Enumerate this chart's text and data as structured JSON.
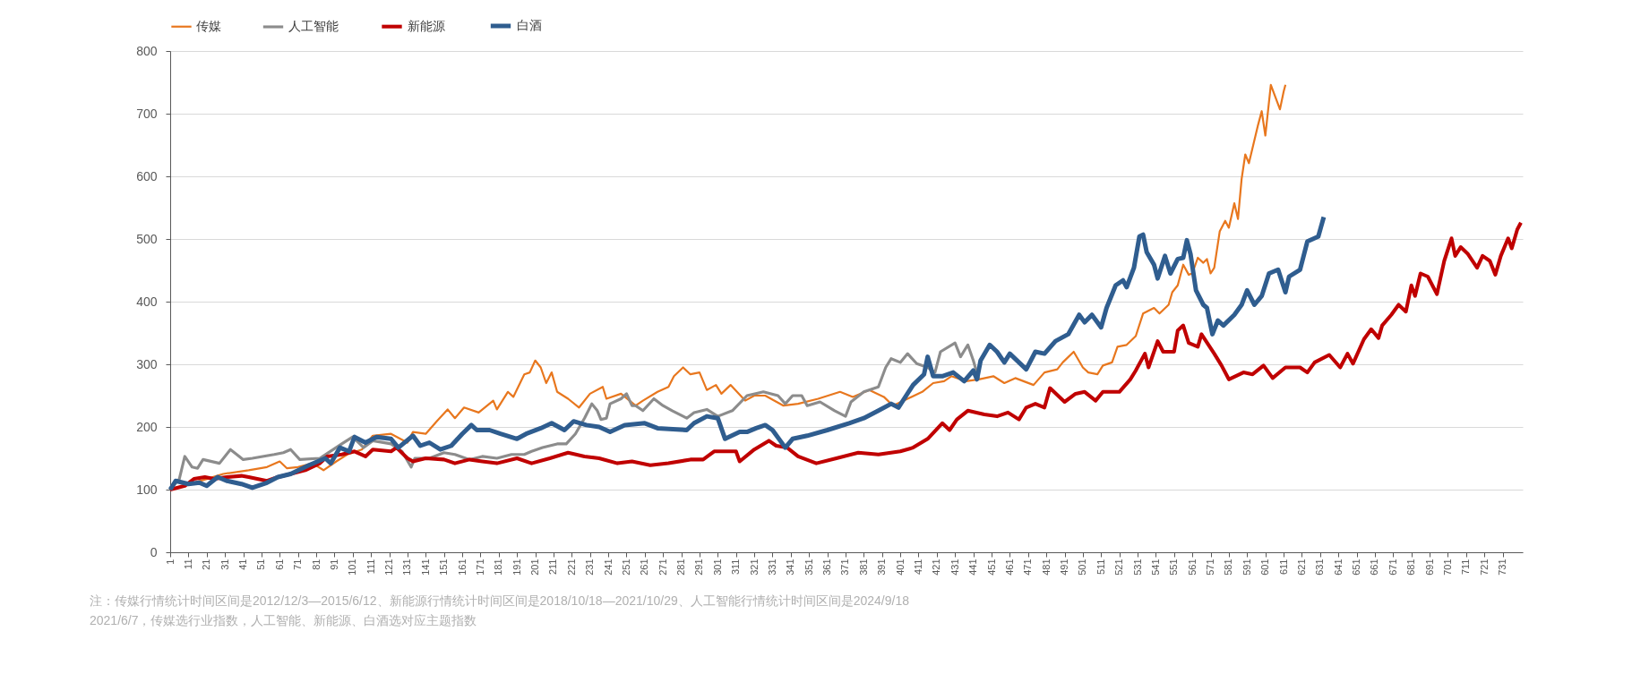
{
  "chart_data": {
    "type": "line",
    "legend": "top",
    "grid": "y",
    "marker": "none",
    "line_style": "solid",
    "xlim": [
      1,
      742
    ],
    "ylim": [
      0,
      800
    ],
    "yticks": [
      0,
      100,
      200,
      300,
      400,
      500,
      600,
      700,
      800
    ],
    "xticks": [
      1,
      11,
      21,
      31,
      41,
      51,
      61,
      71,
      81,
      91,
      101,
      111,
      121,
      131,
      141,
      151,
      161,
      171,
      181,
      191,
      201,
      211,
      221,
      231,
      241,
      251,
      261,
      271,
      281,
      291,
      301,
      311,
      321,
      331,
      341,
      351,
      361,
      371,
      381,
      391,
      401,
      411,
      421,
      431,
      441,
      451,
      461,
      471,
      481,
      491,
      501,
      511,
      521,
      531,
      541,
      551,
      561,
      571,
      581,
      591,
      601,
      611,
      621,
      631,
      641,
      651,
      661,
      671,
      681,
      691,
      701,
      711,
      721,
      731
    ],
    "series": [
      {
        "name": "传媒",
        "color": "#e8771e",
        "x": [
          1,
          21,
          30,
          44,
          54,
          61,
          65,
          71,
          79,
          85,
          92,
          98,
          106,
          112,
          122,
          131,
          134,
          141,
          147,
          153,
          157,
          162,
          170,
          178,
          180,
          186,
          189,
          195,
          198,
          201,
          204,
          207,
          210,
          213,
          219,
          225,
          231,
          238,
          240,
          248,
          256,
          260,
          268,
          274,
          277,
          282,
          286,
          291,
          295,
          300,
          303,
          308,
          316,
          321,
          327,
          337,
          345,
          356,
          368,
          375,
          384,
          392,
          397,
          405,
          413,
          419,
          425,
          429,
          437,
          444,
          452,
          458,
          464,
          474,
          480,
          487,
          490,
          496,
          501,
          504,
          509,
          512,
          517,
          520,
          525,
          530,
          534,
          540,
          543,
          548,
          550,
          553,
          556,
          559,
          561,
          564,
          567,
          569,
          571,
          573,
          576,
          579,
          581,
          584,
          586,
          588,
          590,
          592,
          597,
          599,
          601,
          604,
          609,
          611,
          612
        ],
        "values": [
          100,
          117,
          125,
          131,
          136,
          145,
          134,
          136,
          142,
          131,
          145,
          156,
          164,
          186,
          189,
          175,
          192,
          189,
          209,
          228,
          214,
          231,
          223,
          242,
          228,
          256,
          248,
          284,
          287,
          306,
          295,
          270,
          287,
          256,
          245,
          231,
          253,
          264,
          245,
          253,
          234,
          242,
          256,
          264,
          281,
          295,
          284,
          287,
          259,
          267,
          253,
          267,
          242,
          250,
          250,
          234,
          237,
          245,
          256,
          248,
          259,
          248,
          234,
          245,
          256,
          270,
          273,
          281,
          273,
          276,
          281,
          270,
          278,
          267,
          287,
          292,
          303,
          320,
          295,
          287,
          284,
          298,
          303,
          328,
          331,
          345,
          381,
          390,
          381,
          395,
          415,
          426,
          459,
          443,
          445,
          470,
          462,
          468,
          445,
          454,
          512,
          529,
          518,
          557,
          532,
          596,
          635,
          621,
          682,
          704,
          665,
          746,
          707,
          735,
          746
        ]
      },
      {
        "name": "人工智能",
        "color": "#8c8c8c",
        "x": [
          1,
          6,
          9,
          13,
          16,
          19,
          28,
          34,
          41,
          46,
          58,
          63,
          67,
          72,
          83,
          95,
          101,
          107,
          112,
          122,
          128,
          133,
          135,
          143,
          151,
          157,
          165,
          172,
          180,
          188,
          195,
          199,
          205,
          213,
          218,
          223,
          228,
          232,
          235,
          237,
          240,
          242,
          248,
          251,
          254,
          256,
          260,
          266,
          271,
          276,
          284,
          288,
          295,
          301,
          309,
          317,
          326,
          334,
          338,
          342,
          347,
          350,
          357,
          365,
          371,
          374,
          381,
          389,
          393,
          396,
          401,
          405,
          410,
          416,
          420,
          423,
          431,
          434,
          438,
          441,
          444
        ],
        "values": [
          100,
          117,
          153,
          136,
          134,
          148,
          142,
          164,
          148,
          150,
          156,
          159,
          164,
          148,
          150,
          173,
          184,
          167,
          178,
          173,
          161,
          136,
          150,
          150,
          159,
          156,
          148,
          153,
          150,
          156,
          156,
          161,
          167,
          173,
          173,
          189,
          214,
          237,
          226,
          212,
          214,
          237,
          245,
          253,
          234,
          234,
          226,
          245,
          234,
          226,
          214,
          223,
          228,
          217,
          226,
          250,
          256,
          250,
          237,
          250,
          250,
          234,
          240,
          226,
          217,
          240,
          256,
          264,
          295,
          309,
          303,
          317,
          301,
          295,
          287,
          320,
          334,
          312,
          331,
          306,
          276
        ]
      },
      {
        "name": "新能源",
        "color": "#c00000",
        "x": [
          1,
          9,
          14,
          20,
          25,
          32,
          40,
          44,
          54,
          60,
          67,
          75,
          83,
          87,
          95,
          102,
          108,
          112,
          122,
          125,
          131,
          134,
          141,
          151,
          157,
          165,
          172,
          180,
          191,
          199,
          209,
          219,
          228,
          236,
          246,
          254,
          264,
          274,
          286,
          293,
          299,
          311,
          313,
          321,
          329,
          333,
          339,
          345,
          355,
          366,
          378,
          389,
          401,
          408,
          416,
          424,
          428,
          432,
          438,
          447,
          454,
          460,
          466,
          470,
          475,
          480,
          483,
          491,
          497,
          502,
          508,
          512,
          521,
          527,
          530,
          535,
          537,
          542,
          545,
          551,
          553,
          556,
          559,
          564,
          566,
          573,
          577,
          581,
          589,
          594,
          600,
          605,
          612,
          620,
          624,
          628,
          636,
          642,
          646,
          649,
          655,
          659,
          663,
          665,
          670,
          674,
          678,
          681,
          683,
          686,
          690,
          695,
          699,
          703,
          705,
          708,
          712,
          717,
          720,
          724,
          727,
          730,
          734,
          736,
          739,
          741
        ],
        "values": [
          100,
          106,
          117,
          120,
          117,
          120,
          122,
          120,
          114,
          120,
          125,
          131,
          142,
          153,
          156,
          161,
          153,
          164,
          161,
          167,
          150,
          145,
          150,
          148,
          142,
          148,
          145,
          142,
          150,
          142,
          150,
          159,
          153,
          150,
          142,
          145,
          139,
          142,
          148,
          148,
          161,
          161,
          145,
          164,
          178,
          170,
          167,
          153,
          142,
          150,
          159,
          156,
          161,
          167,
          181,
          206,
          195,
          212,
          226,
          220,
          217,
          223,
          212,
          231,
          237,
          231,
          262,
          240,
          253,
          256,
          242,
          256,
          256,
          276,
          290,
          317,
          295,
          337,
          320,
          320,
          354,
          362,
          334,
          328,
          348,
          317,
          298,
          276,
          287,
          284,
          298,
          278,
          295,
          295,
          287,
          303,
          315,
          295,
          317,
          301,
          340,
          356,
          342,
          362,
          379,
          395,
          384,
          426,
          409,
          445,
          440,
          412,
          465,
          501,
          473,
          487,
          476,
          454,
          473,
          465,
          443,
          473,
          501,
          485,
          515,
          526
        ]
      },
      {
        "name": "白酒",
        "color": "#2f5d8f",
        "x": [
          1,
          4,
          11,
          17,
          21,
          27,
          32,
          40,
          46,
          54,
          60,
          67,
          77,
          86,
          89,
          94,
          99,
          102,
          108,
          114,
          122,
          126,
          134,
          138,
          143,
          149,
          155,
          161,
          166,
          169,
          176,
          182,
          191,
          196,
          204,
          210,
          217,
          222,
          229,
          236,
          242,
          250,
          261,
          268,
          284,
          288,
          295,
          301,
          305,
          313,
          317,
          322,
          327,
          331,
          338,
          342,
          350,
          361,
          373,
          381,
          389,
          396,
          400,
          408,
          414,
          416,
          419,
          424,
          430,
          436,
          441,
          443,
          445,
          450,
          454,
          458,
          461,
          470,
          475,
          480,
          486,
          493,
          499,
          502,
          506,
          511,
          514,
          519,
          523,
          525,
          529,
          532,
          534,
          536,
          540,
          542,
          546,
          549,
          553,
          556,
          558,
          560,
          563,
          567,
          569,
          572,
          575,
          578,
          584,
          588,
          591,
          595,
          599,
          603,
          608,
          612,
          614,
          620,
          624,
          630,
          633
        ],
        "values": [
          100,
          114,
          109,
          111,
          106,
          120,
          114,
          109,
          103,
          111,
          120,
          125,
          139,
          150,
          142,
          167,
          161,
          184,
          175,
          184,
          181,
          167,
          186,
          170,
          175,
          164,
          170,
          189,
          203,
          195,
          195,
          189,
          181,
          189,
          198,
          206,
          195,
          209,
          203,
          200,
          192,
          203,
          206,
          198,
          195,
          206,
          217,
          214,
          181,
          192,
          192,
          198,
          203,
          195,
          167,
          181,
          186,
          195,
          206,
          214,
          226,
          237,
          231,
          267,
          284,
          312,
          281,
          281,
          287,
          273,
          290,
          276,
          306,
          331,
          320,
          303,
          317,
          292,
          320,
          317,
          337,
          348,
          379,
          367,
          379,
          359,
          390,
          426,
          434,
          423,
          454,
          504,
          507,
          479,
          459,
          437,
          473,
          445,
          468,
          470,
          498,
          476,
          418,
          395,
          390,
          348,
          370,
          362,
          379,
          395,
          418,
          395,
          409,
          445,
          451,
          415,
          440,
          451,
          496,
          504,
          535
        ]
      }
    ],
    "annotations": [
      "注：传媒行情统计时间区间是2012/12/3—2015/6/12、新能源行情统计时间区间是2018/10/18—2021/10/29、人工智能行情统计时间区间是2024/9/18",
      "2021/6/7，传媒选行业指数，人工智能、新能源、白酒选对应主题指数"
    ]
  }
}
